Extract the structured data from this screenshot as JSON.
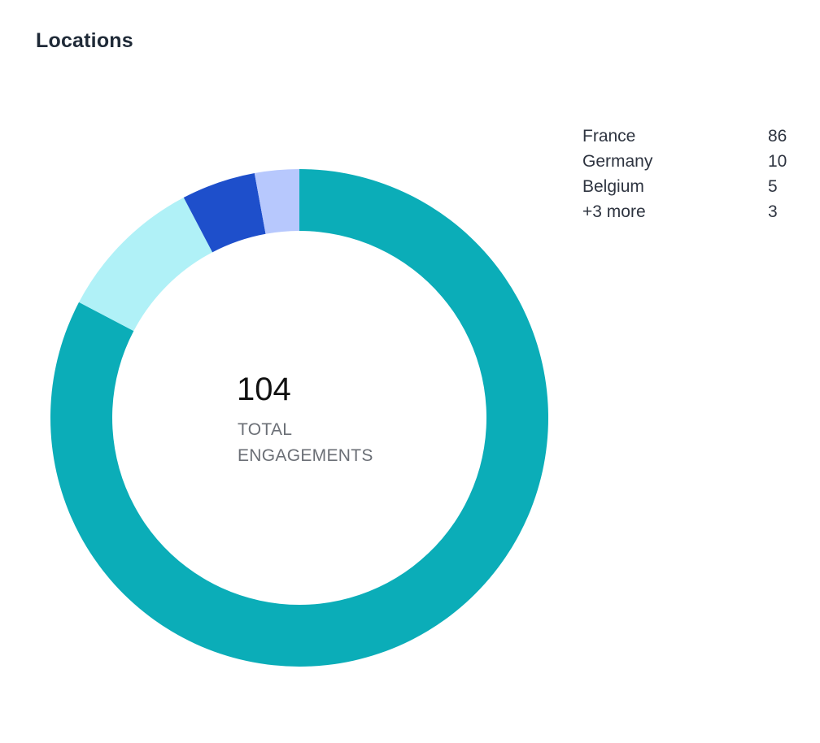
{
  "card": {
    "title": "Locations"
  },
  "center": {
    "total": "104",
    "label": "TOTAL ENGAGEMENTS"
  },
  "legend": {
    "items": [
      {
        "label": "France",
        "value": "86"
      },
      {
        "label": "Germany",
        "value": "10"
      },
      {
        "label": "Belgium",
        "value": "5"
      },
      {
        "label": "+3 more",
        "value": "3"
      }
    ]
  },
  "chart_data": {
    "type": "pie",
    "title": "Locations",
    "total": 104,
    "categories": [
      "France",
      "Germany",
      "Belgium",
      "+3 more"
    ],
    "values": [
      86,
      10,
      5,
      3
    ],
    "colors": [
      "#0badb8",
      "#b0f1f7",
      "#1e4fcb",
      "#b7c8fd"
    ],
    "legend": "right"
  }
}
